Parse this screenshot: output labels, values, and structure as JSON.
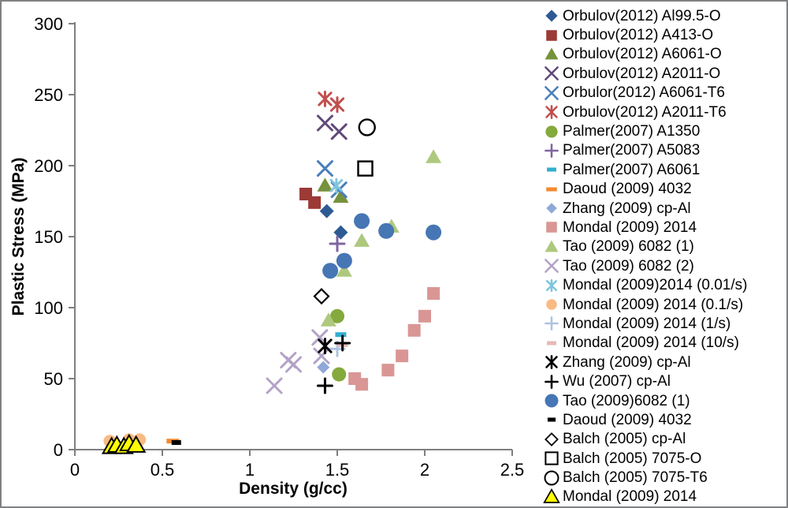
{
  "chart_data": {
    "type": "scatter",
    "title": "",
    "xlabel": "Density (g/cc)",
    "ylabel": "Plastic Stress (MPa)",
    "xlim": [
      0,
      2.5
    ],
    "ylim": [
      0,
      300
    ],
    "x_ticks": [
      0,
      0.5,
      1,
      1.5,
      2,
      2.5
    ],
    "x_tick_labels": [
      "0",
      "0.5",
      "1",
      "1.5",
      "2",
      "2.5"
    ],
    "y_ticks": [
      0,
      50,
      100,
      150,
      200,
      250,
      300
    ],
    "y_tick_labels": [
      "0",
      "50",
      "100",
      "150",
      "200",
      "250",
      "300"
    ],
    "grid": false,
    "legend_position": "right",
    "axis_color": "#7f7f7f",
    "series": [
      {
        "name": "Orbulov(2012) Al99.5-O",
        "marker": "diamond",
        "color": "#2E5A94",
        "size": 9,
        "points": [
          [
            1.44,
            168
          ],
          [
            1.52,
            153
          ]
        ]
      },
      {
        "name": "Orbulov(2012) A413-O",
        "marker": "square",
        "color": "#9C3A36",
        "size": 8,
        "points": [
          [
            1.32,
            180
          ],
          [
            1.37,
            174
          ]
        ]
      },
      {
        "name": "Orbulov(2012) A6061-O",
        "marker": "triangle",
        "color": "#76923C",
        "size": 10,
        "points": [
          [
            1.43,
            186
          ],
          [
            1.52,
            178
          ]
        ]
      },
      {
        "name": "Orbulov(2012) A2011-O",
        "marker": "x",
        "color": "#60497A",
        "size": 9,
        "points": [
          [
            1.43,
            230
          ],
          [
            1.51,
            224
          ]
        ]
      },
      {
        "name": "Orbulor(2012) A6061-T6",
        "marker": "x",
        "color": "#4A7EBB",
        "size": 9,
        "points": [
          [
            1.43,
            198
          ],
          [
            1.51,
            183
          ]
        ]
      },
      {
        "name": "Orbulov(2012) A2011-T6",
        "marker": "asterisk",
        "color": "#C0504D",
        "size": 9,
        "points": [
          [
            1.43,
            247
          ],
          [
            1.5,
            243
          ]
        ]
      },
      {
        "name": "Palmer(2007) A1350",
        "marker": "circle",
        "color": "#84A93C",
        "size": 9,
        "points": [
          [
            1.5,
            94
          ],
          [
            1.51,
            53
          ]
        ]
      },
      {
        "name": "Palmer(2007) A5083",
        "marker": "plus",
        "color": "#8064A2",
        "size": 9,
        "points": [
          [
            1.5,
            145
          ]
        ]
      },
      {
        "name": "Palmer(2007) A6061",
        "marker": "dash",
        "color": "#33AECE",
        "size": 7,
        "points": [
          [
            1.52,
            81
          ]
        ]
      },
      {
        "name": "Daoud (2009) 4032",
        "marker": "dash",
        "color": "#F28A30",
        "size": 8,
        "points": [
          [
            0.56,
            6
          ]
        ]
      },
      {
        "name": "Zhang (2009) cp-Al",
        "marker": "diamond",
        "color": "#8FA9D8",
        "size": 8,
        "points": [
          [
            1.42,
            58
          ]
        ]
      },
      {
        "name": "Mondal (2009) 2014",
        "marker": "square",
        "color": "#D99694",
        "size": 8,
        "points": [
          [
            1.6,
            50
          ],
          [
            1.64,
            46
          ],
          [
            1.79,
            56
          ],
          [
            1.87,
            66
          ],
          [
            1.94,
            84
          ],
          [
            2.0,
            94
          ],
          [
            2.05,
            110
          ]
        ]
      },
      {
        "name": "Tao (2009) 6082 (1)",
        "marker": "triangle",
        "color": "#AEC97E",
        "size": 10,
        "points": [
          [
            1.45,
            91
          ],
          [
            1.54,
            126
          ],
          [
            1.64,
            147
          ],
          [
            1.81,
            157
          ],
          [
            2.05,
            206
          ]
        ]
      },
      {
        "name": "Tao (2009) 6082 (2)",
        "marker": "x",
        "color": "#B3A2C7",
        "size": 9,
        "points": [
          [
            1.14,
            45
          ],
          [
            1.22,
            63
          ],
          [
            1.25,
            60
          ],
          [
            1.4,
            79
          ],
          [
            1.41,
            66
          ]
        ]
      },
      {
        "name": "Mondal (2009)2014 (0.01/s)",
        "marker": "asterisk",
        "color": "#7EC5DC",
        "size": 8,
        "points": [
          [
            1.495,
            186
          ]
        ]
      },
      {
        "name": "Mondal (2009) 2014 (0.1/s)",
        "marker": "circle",
        "color": "#F9BA84",
        "size": 8,
        "points": [
          [
            0.2,
            6
          ],
          [
            0.31,
            7
          ],
          [
            0.37,
            7
          ]
        ]
      },
      {
        "name": "Mondal (2009) 2014 (1/s)",
        "marker": "plus",
        "color": "#AEC3E0",
        "size": 9,
        "points": [
          [
            1.5,
            71
          ]
        ]
      },
      {
        "name": "Mondal (2009) 2014 (10/s)",
        "marker": "dash",
        "color": "#E6B9B8",
        "size": 7,
        "points": [
          [
            1.53,
            74
          ]
        ]
      },
      {
        "name": "Zhang (2009) cp-Al",
        "marker": "asterisk",
        "color": "#000000",
        "size": 9,
        "points": [
          [
            1.43,
            73
          ]
        ]
      },
      {
        "name": "Wu (2007) cp-Al",
        "marker": "plus",
        "color": "#000000",
        "size": 9,
        "points": [
          [
            1.53,
            75
          ],
          [
            1.43,
            45
          ]
        ]
      },
      {
        "name": "Tao (2009)6082 (1)",
        "marker": "circle",
        "color": "#4676B4",
        "size": 10,
        "points": [
          [
            1.46,
            126
          ],
          [
            1.54,
            133
          ],
          [
            1.64,
            161
          ],
          [
            1.78,
            154
          ],
          [
            2.05,
            153
          ]
        ]
      },
      {
        "name": "Daoud (2009) 4032",
        "marker": "dash",
        "color": "#000000",
        "size": 6,
        "points": [
          [
            0.58,
            5
          ]
        ]
      },
      {
        "name": "Balch (2005) cp-Al",
        "marker": "open-diamond",
        "color": "#000000",
        "size": 9,
        "points": [
          [
            1.41,
            108
          ]
        ]
      },
      {
        "name": "Balch (2005) 7075-O",
        "marker": "open-square",
        "color": "#000000",
        "size": 9,
        "points": [
          [
            1.66,
            198
          ]
        ]
      },
      {
        "name": "Balch (2005) 7075-T6",
        "marker": "open-circle",
        "color": "#000000",
        "size": 10,
        "points": [
          [
            1.67,
            227
          ]
        ]
      },
      {
        "name": "Mondal (2009) 2014",
        "marker": "triangle",
        "color": "#FFFF00",
        "outline": "#000000",
        "size": 11,
        "points": [
          [
            0.21,
            2
          ],
          [
            0.24,
            3
          ],
          [
            0.28,
            2
          ],
          [
            0.31,
            4
          ],
          [
            0.35,
            3
          ]
        ]
      }
    ]
  }
}
